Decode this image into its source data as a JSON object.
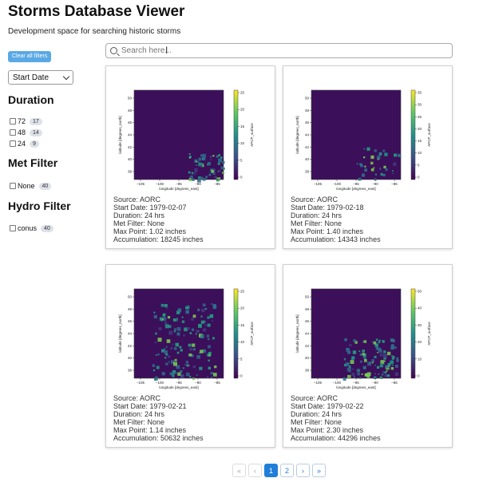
{
  "header": {
    "title": "Storms Database Viewer",
    "subtitle": "Development space for searching historic storms"
  },
  "sidebar": {
    "clear_label": "Clear all filters",
    "sort_selected": "Start Date",
    "groups": [
      {
        "title": "Duration",
        "options": [
          {
            "label": "72",
            "count": "17"
          },
          {
            "label": "48",
            "count": "14"
          },
          {
            "label": "24",
            "count": "9"
          }
        ]
      },
      {
        "title": "Met Filter",
        "options": [
          {
            "label": "None",
            "count": "40"
          }
        ]
      },
      {
        "title": "Hydro Filter",
        "options": [
          {
            "label": "conus",
            "count": "40"
          }
        ]
      }
    ]
  },
  "search": {
    "placeholder": "Search here..."
  },
  "plot_axes": {
    "xlabel": "longitude [degrees_east]",
    "ylabel": "latitude [degrees_north]",
    "cbar_label": "APCP_surface",
    "x_ticks": [
      "−105",
      "−100",
      "−95",
      "−90",
      "−85"
    ],
    "y_ticks": [
      "50",
      "48",
      "46",
      "44",
      "42",
      "40",
      "38"
    ]
  },
  "cards": [
    {
      "source": "Source: AORC",
      "start": "Start Date: 1979-02-07",
      "duration": "Duration: 24 hrs",
      "met": "Met Filter: None",
      "max": "Max Point: 1.02 inches",
      "accum": "Accumulation: 18245 inches",
      "cbar_ticks": [
        "25",
        "20",
        "15",
        "10",
        "5",
        "0"
      ]
    },
    {
      "source": "Source: AORC",
      "start": "Start Date: 1979-02-18",
      "duration": "Duration: 24 hrs",
      "met": "Met Filter: None",
      "max": "Max Point: 1.40 inches",
      "accum": "Accumulation: 14343 inches",
      "cbar_ticks": [
        "35",
        "30",
        "25",
        "20",
        "15",
        "10",
        "5",
        "0"
      ]
    },
    {
      "source": "Source: AORC",
      "start": "Start Date: 1979-02-21",
      "duration": "Duration: 24 hrs",
      "met": "Met Filter: None",
      "max": "Max Point: 1.14 inches",
      "accum": "Accumulation: 50632 inches",
      "cbar_ticks": [
        "25",
        "20",
        "15",
        "10",
        "5",
        "0"
      ]
    },
    {
      "source": "Source: AORC",
      "start": "Start Date: 1979-02-22",
      "duration": "Duration: 24 hrs",
      "met": "Met Filter: None",
      "max": "Max Point: 2.30 inches",
      "accum": "Accumulation: 44296 inches",
      "cbar_ticks": [
        "50",
        "40",
        "30",
        "20",
        "10",
        "0"
      ]
    }
  ],
  "pagination": {
    "first": "«",
    "prev": "‹",
    "pages": [
      "1",
      "2"
    ],
    "next": "›",
    "last": "»",
    "current": "1"
  }
}
